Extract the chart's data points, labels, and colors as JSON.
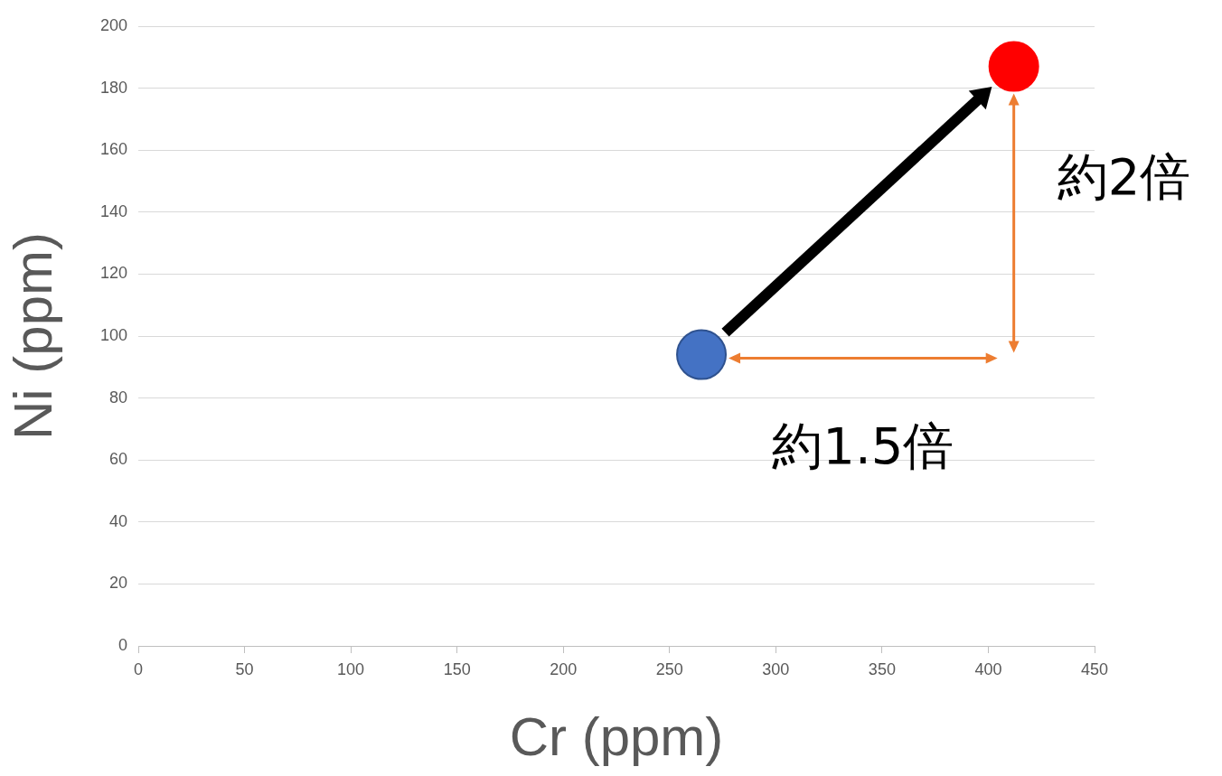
{
  "chart_data": {
    "type": "scatter",
    "xlabel": "Cr (ppm)",
    "ylabel": "Ni (ppm)",
    "series": [
      {
        "color": "#4472c4",
        "x": [
          265
        ],
        "values": [
          94
        ]
      },
      {
        "color": "#ff0000",
        "x": [
          412
        ],
        "values": [
          187
        ]
      }
    ],
    "xlim": [
      0,
      450
    ],
    "xticks": [
      0,
      50,
      100,
      150,
      200,
      250,
      300,
      350,
      400,
      450
    ],
    "ylim": [
      0,
      200
    ],
    "yticks": [
      0,
      20,
      40,
      60,
      80,
      100,
      120,
      140,
      160,
      180,
      200
    ],
    "grid": "y",
    "legend": false,
    "marker": "circle",
    "annotations": [
      "約1.5倍",
      "約2倍"
    ]
  }
}
